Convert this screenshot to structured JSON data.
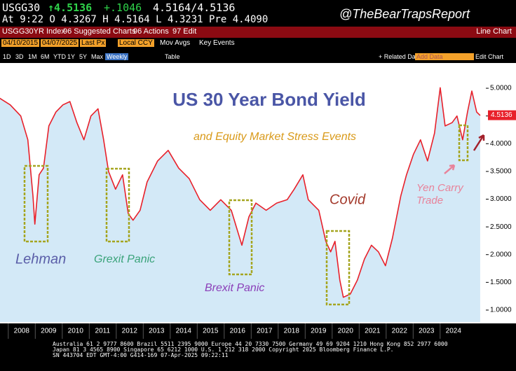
{
  "header": {
    "ticker": "USGG30",
    "last": "↑4.5136",
    "change": "+.1046",
    "bid_ask": "4.5164/4.5136",
    "quote_line": "At 9:22 O 4.3267 H 4.5164 L 4.3231 Pre 4.4090",
    "watermark": "@TheBearTrapsReport",
    "menu": [
      "USGG30YR Index",
      "96 Suggested Charts",
      "96 Actions",
      "97 Edit"
    ],
    "menu_right": "Line Chart",
    "fields": [
      "04/10/2015",
      "04/07/2025",
      "Last Px",
      "Local CCY",
      "Mov Avgs",
      "Key Events"
    ],
    "periods": [
      "1D",
      "3D",
      "1M",
      "6M",
      "YTD",
      "1Y",
      "5Y",
      "Max",
      "Weekly",
      "Table"
    ],
    "tools": [
      "+ Related Dat",
      "Add Data",
      "Edit Chart"
    ]
  },
  "footer": [
    "Australia 61 2 9777 8600 Brazil 5511 2395 9000 Europe 44 20 7330 7500 Germany 49 69 9204 1210 Hong Kong 852 2977 6000",
    "Japan 81 3 4565 8900 Singapore 65 6212 1000 U.S. 1 212 318 2000 Copyright 2025 Bloomberg Finance L.P.",
    "SN 443704 EDT GMT-4:00 G414-169 07-Apr-2025 09:22:11"
  ],
  "chart_data": {
    "type": "line",
    "title": "US 30 Year Bond Yield",
    "subtitle": "and Equity Market Stress Events",
    "annotations": [
      {
        "lines": [
          "Lehman"
        ],
        "color": "#5a5ea8"
      },
      {
        "lines": [
          "Grexit Panic"
        ],
        "color": "#3aa37a"
      },
      {
        "lines": [
          "Brexit Panic"
        ],
        "color": "#8b3fb8"
      },
      {
        "lines": [
          "Covid"
        ],
        "color": "#a3392b"
      },
      {
        "lines": [
          "Yen Carry",
          "Trade"
        ],
        "color": "#e8839a"
      }
    ],
    "last_label": 4.5136,
    "x": [
      2007.19,
      2007.58,
      2007.97,
      2008.23,
      2008.42,
      2008.49,
      2008.65,
      2008.81,
      2009.01,
      2009.27,
      2009.53,
      2009.79,
      2010.05,
      2010.31,
      2010.57,
      2010.83,
      2011.04,
      2011.22,
      2011.48,
      2011.74,
      2011.95,
      2012.13,
      2012.39,
      2012.65,
      2013.04,
      2013.43,
      2013.82,
      2014.21,
      2014.6,
      2014.99,
      2015.38,
      2015.77,
      2016.16,
      2016.42,
      2016.68,
      2017.06,
      2017.45,
      2017.84,
      2018.1,
      2018.42,
      2018.62,
      2019.01,
      2019.27,
      2019.45,
      2019.61,
      2019.79,
      2019.92,
      2020.18,
      2020.44,
      2020.7,
      2020.96,
      2021.22,
      2021.48,
      2021.74,
      2022.05,
      2022.26,
      2022.52,
      2022.78,
      2023.04,
      2023.3,
      2023.51,
      2023.69,
      2023.95,
      2024.13,
      2024.34,
      2024.52,
      2024.68,
      2024.86,
      2024.99
    ],
    "series": [
      {
        "name": "USGG30YR Index",
        "color": "#e8202a",
        "values": [
          4.82,
          4.7,
          4.5,
          4.07,
          3.06,
          2.55,
          3.44,
          3.56,
          4.32,
          4.57,
          4.7,
          4.76,
          4.38,
          4.07,
          4.5,
          4.63,
          4.07,
          3.5,
          3.18,
          3.44,
          2.74,
          2.62,
          2.8,
          3.31,
          3.69,
          3.88,
          3.56,
          3.37,
          2.99,
          2.8,
          2.99,
          2.8,
          2.17,
          2.68,
          2.93,
          2.8,
          2.93,
          2.99,
          3.18,
          3.44,
          2.99,
          2.8,
          2.24,
          2.05,
          2.24,
          1.54,
          1.23,
          1.29,
          1.54,
          1.92,
          2.17,
          2.05,
          1.8,
          2.3,
          3.06,
          3.44,
          3.81,
          4.07,
          3.69,
          4.19,
          5.01,
          4.32,
          4.38,
          4.5,
          4.07,
          4.57,
          4.95,
          4.57,
          4.51
        ]
      }
    ],
    "xlim": [
      2007.2,
      2025.2
    ],
    "xticks": [
      2008,
      2009,
      2010,
      2011,
      2012,
      2013,
      2014,
      2015,
      2016,
      2017,
      2018,
      2019,
      2020,
      2021,
      2022,
      2023,
      2024
    ],
    "ylim": [
      0.785,
      5.43
    ],
    "yticks": [
      {
        "value": 1,
        "label": "1.0000"
      },
      {
        "value": 1.5,
        "label": "1.5000"
      },
      {
        "value": 2,
        "label": "2.0000"
      },
      {
        "value": 2.5,
        "label": "2.5000"
      },
      {
        "value": 3,
        "label": "3.0000"
      },
      {
        "value": 3.5,
        "label": "3.5000"
      },
      {
        "value": 4,
        "label": "4.0000"
      },
      {
        "value": 4.5,
        "label": "4.5000"
      },
      {
        "value": 5,
        "label": "5.0000"
      }
    ],
    "fill_color": "#d3e9f7"
  }
}
